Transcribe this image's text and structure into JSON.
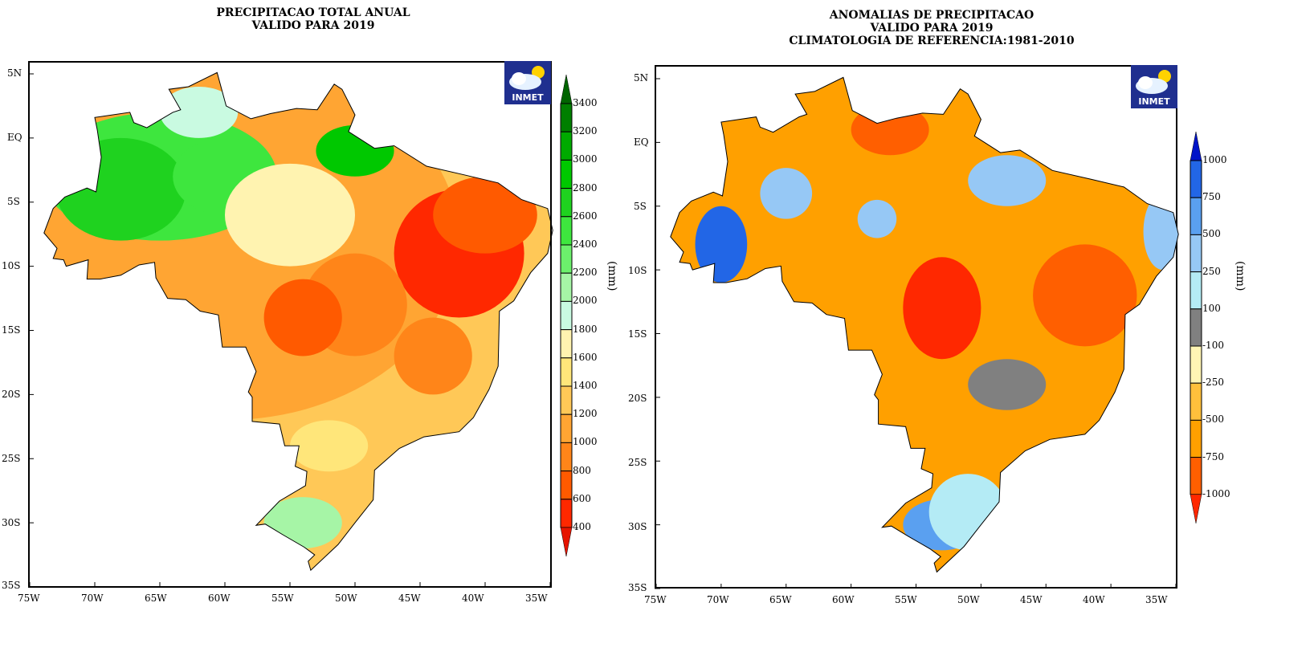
{
  "left_map": {
    "title_lines": [
      "PRECIPITACAO TOTAL ANUAL",
      "VALIDO PARA 2019"
    ],
    "logo_text": "INMET",
    "unit": "(mm)",
    "lat_labels": [
      "5N",
      "EQ",
      "5S",
      "10S",
      "15S",
      "20S",
      "25S",
      "30S",
      "35S"
    ],
    "lon_labels": [
      "75W",
      "70W",
      "65W",
      "60W",
      "55W",
      "50W",
      "45W",
      "40W",
      "35W"
    ],
    "colorbar": {
      "labels": [
        "3400",
        "3200",
        "3000",
        "2800",
        "2600",
        "2400",
        "2200",
        "2000",
        "1800",
        "1600",
        "1400",
        "1200",
        "1000",
        "800",
        "600",
        "400"
      ],
      "colors": [
        "#006400",
        "#007f00",
        "#00aa00",
        "#00c800",
        "#1fd21f",
        "#3ee63e",
        "#6cf06c",
        "#a6f5a6",
        "#c9fae1",
        "#fff3b0",
        "#ffe67a",
        "#ffc857",
        "#ffa533",
        "#ff8519",
        "#ff5a00",
        "#ff2800",
        "#e61400"
      ]
    }
  },
  "right_map": {
    "title_lines": [
      "ANOMALIAS DE PRECIPITACAO",
      "VALIDO PARA 2019",
      "CLIMATOLOGIA DE REFERENCIA:1981-2010"
    ],
    "logo_text": "INMET",
    "unit": "(mm)",
    "lat_labels": [
      "5N",
      "EQ",
      "5S",
      "10S",
      "15S",
      "20S",
      "25S",
      "30S",
      "35S"
    ],
    "lon_labels": [
      "75W",
      "70W",
      "65W",
      "60W",
      "55W",
      "50W",
      "45W",
      "40W",
      "35W"
    ],
    "colorbar": {
      "labels": [
        "1000",
        "750",
        "500",
        "250",
        "100",
        "-100",
        "-250",
        "-500",
        "-750",
        "-1000"
      ],
      "colors": [
        "#0014c8",
        "#2266e6",
        "#5aa0f0",
        "#96c8f5",
        "#b4ebf5",
        "#808080",
        "#fff5b4",
        "#ffc03c",
        "#ffa000",
        "#ff5f00",
        "#ff2800"
      ]
    }
  }
}
